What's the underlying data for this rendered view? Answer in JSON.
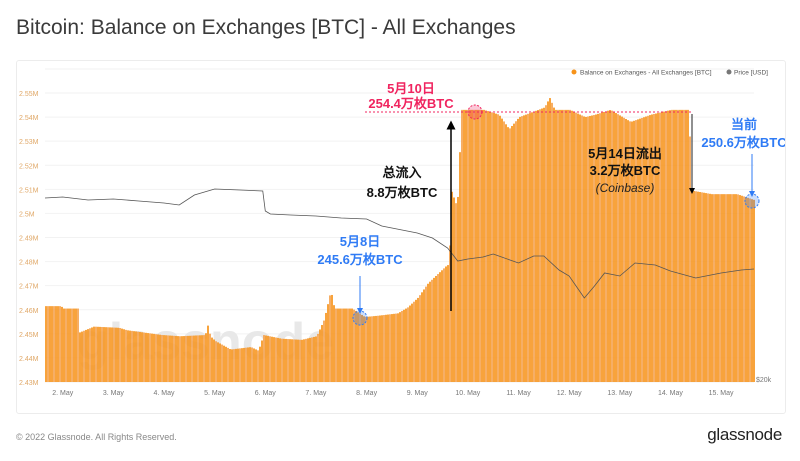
{
  "header": {
    "title": "Bitcoin: Balance on Exchanges [BTC] - All Exchanges"
  },
  "footer": {
    "copyright": "© 2022 Glassnode. All Rights Reserved.",
    "logo": "glassnode"
  },
  "watermark": "glassnode",
  "colors": {
    "balance": "#f7931a",
    "price": "#555555",
    "peak": "#f0245f",
    "blue": "#2f7bf5"
  },
  "chart_data": {
    "type": "bar",
    "title": "Bitcoin: Balance on Exchanges [BTC] - All Exchanges",
    "legend": {
      "position": "top-right",
      "items": [
        "Balance on Exchanges - All Exchanges [BTC]",
        "Price [USD]"
      ]
    },
    "x_ticks": [
      "2. May",
      "3. May",
      "4. May",
      "5. May",
      "6. May",
      "7. May",
      "8. May",
      "9. May",
      "10. May",
      "11. May",
      "12. May",
      "13. May",
      "14. May",
      "15. May"
    ],
    "x_tick_days": [
      2,
      3,
      4,
      5,
      6,
      7,
      8,
      9,
      10,
      11,
      12,
      13,
      14,
      15
    ],
    "xlim_days": [
      1.65,
      15.65
    ],
    "y_ticks": [
      "2.43M",
      "2.44M",
      "2.45M",
      "2.46M",
      "2.47M",
      "2.48M",
      "2.49M",
      "2.5M",
      "2.51M",
      "2.52M",
      "2.53M",
      "2.54M",
      "2.55M"
    ],
    "ylim": [
      2.43,
      2.555
    ],
    "y_right_ticks": [
      "$20k"
    ],
    "y_right_lim": [
      20000,
      50000
    ],
    "series": [
      {
        "name": "Balance on Exchanges - All Exchanges [BTC]",
        "unit": "M BTC",
        "x": [
          1.65,
          1.95,
          2.0,
          2.3,
          2.31,
          2.6,
          3.1,
          3.25,
          3.6,
          3.95,
          4.3,
          4.8,
          4.85,
          4.9,
          5.0,
          5.3,
          5.7,
          5.85,
          5.95,
          6.3,
          6.7,
          7.0,
          7.15,
          7.28,
          7.35,
          7.7,
          7.95,
          8.2,
          8.6,
          8.8,
          9.0,
          9.2,
          9.4,
          9.55,
          9.62,
          9.65,
          9.75,
          9.8,
          9.85,
          10.3,
          10.6,
          10.8,
          11.0,
          11.5,
          11.6,
          11.7,
          12.0,
          12.3,
          12.5,
          12.8,
          13.2,
          13.6,
          14.0,
          14.35,
          14.4,
          14.8,
          15.3,
          15.65
        ],
        "values": [
          2.4615,
          2.4615,
          2.4605,
          2.4605,
          2.4505,
          2.453,
          2.4525,
          2.4515,
          2.4505,
          2.4495,
          2.449,
          2.4495,
          2.4535,
          2.449,
          2.447,
          2.4435,
          2.4445,
          2.443,
          2.4495,
          2.448,
          2.4475,
          2.449,
          2.456,
          2.468,
          2.4605,
          2.4605,
          2.457,
          2.4575,
          2.4585,
          2.461,
          2.465,
          2.471,
          2.475,
          2.478,
          2.479,
          2.51,
          2.504,
          2.508,
          2.543,
          2.543,
          2.541,
          2.535,
          2.54,
          2.544,
          2.548,
          2.543,
          2.543,
          2.54,
          2.541,
          2.543,
          2.538,
          2.541,
          2.543,
          2.543,
          2.5095,
          2.508,
          2.508,
          2.5055
        ]
      },
      {
        "name": "Price [USD]",
        "unit": "USD",
        "x": [
          1.65,
          2.0,
          2.5,
          3.0,
          3.5,
          4.0,
          4.3,
          4.6,
          5.0,
          5.5,
          5.95,
          6.0,
          6.1,
          6.5,
          7.0,
          7.5,
          8.0,
          8.3,
          8.6,
          9.0,
          9.3,
          9.6,
          9.8,
          10.0,
          10.3,
          10.5,
          11.0,
          11.3,
          11.5,
          11.8,
          12.0,
          12.3,
          12.5,
          12.7,
          13.0,
          13.3,
          13.7,
          14.0,
          14.5,
          15.0,
          15.4,
          15.65
        ],
        "values": [
          38400,
          38500,
          38200,
          38300,
          38100,
          37900,
          37700,
          38700,
          39300,
          39200,
          39100,
          37100,
          36800,
          36700,
          36600,
          36400,
          36300,
          35600,
          35300,
          34900,
          34400,
          33400,
          32100,
          32300,
          32500,
          32800,
          31900,
          32600,
          32600,
          31200,
          30600,
          28400,
          29600,
          30900,
          30600,
          31900,
          31700,
          31100,
          30400,
          30900,
          31200,
          31300
        ]
      }
    ],
    "annotations": [
      {
        "date": "5月10日",
        "label": "254.4万枚BTC",
        "value": 2.544,
        "day": 9.95
      },
      {
        "label_line1": "总流入",
        "label_line2": "8.8万枚BTC"
      },
      {
        "date": "5月8日",
        "label": "245.6万枚BTC",
        "value": 2.456,
        "day": 8.0
      },
      {
        "label_line1": "5月14日流出",
        "label_line2": "3.2万枚BTC",
        "label_line3": "(Coinbase)"
      },
      {
        "date": "当前",
        "label": "250.6万枚BTC",
        "value": 2.5065,
        "day": 15.6
      }
    ]
  }
}
